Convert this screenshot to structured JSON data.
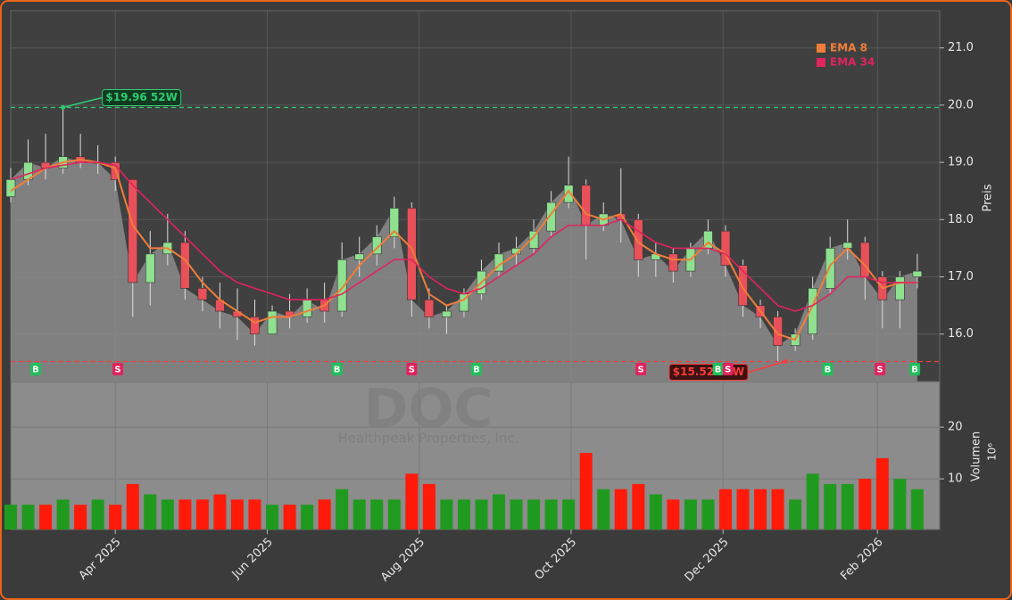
{
  "chart_data": {
    "type": "candlestick",
    "ticker": "DOC",
    "company": "Healthpeak Properties, Inc.",
    "ylabel": "Preis",
    "x": [
      "2025-02-18",
      "2025-02-25",
      "2025-03-04",
      "2025-03-11",
      "2025-03-18",
      "2025-03-25",
      "2025-04-01",
      "2025-04-08",
      "2025-04-15",
      "2025-04-22",
      "2025-04-29",
      "2025-05-06",
      "2025-05-13",
      "2025-05-20",
      "2025-05-27",
      "2025-06-03",
      "2025-06-10",
      "2025-06-17",
      "2025-06-24",
      "2025-07-01",
      "2025-07-08",
      "2025-07-15",
      "2025-07-22",
      "2025-07-29",
      "2025-08-05",
      "2025-08-12",
      "2025-08-19",
      "2025-08-26",
      "2025-09-02",
      "2025-09-09",
      "2025-09-16",
      "2025-09-23",
      "2025-09-30",
      "2025-10-07",
      "2025-10-14",
      "2025-10-21",
      "2025-10-28",
      "2025-11-04",
      "2025-11-11",
      "2025-11-18",
      "2025-11-25",
      "2025-12-02",
      "2025-12-09",
      "2025-12-16",
      "2025-12-23",
      "2025-12-30",
      "2026-01-06",
      "2026-01-13",
      "2026-01-20",
      "2026-01-27",
      "2026-02-03",
      "2026-02-10",
      "2026-02-17"
    ],
    "open": [
      18.4,
      18.7,
      19.0,
      18.9,
      19.1,
      19.0,
      19.0,
      18.7,
      16.9,
      17.4,
      17.6,
      16.8,
      16.6,
      16.4,
      16.3,
      16.0,
      16.4,
      16.3,
      16.6,
      16.4,
      17.3,
      17.4,
      17.7,
      18.2,
      16.6,
      16.3,
      16.4,
      16.7,
      17.1,
      17.4,
      17.5,
      17.8,
      18.3,
      18.6,
      17.9,
      18.1,
      18.0,
      17.3,
      17.4,
      17.1,
      17.5,
      17.8,
      17.2,
      16.5,
      16.3,
      15.8,
      16.0,
      16.8,
      17.5,
      17.6,
      17.0,
      16.6,
      17.0
    ],
    "high": [
      18.9,
      19.4,
      19.5,
      19.96,
      19.5,
      19.3,
      19.1,
      18.7,
      17.8,
      18.1,
      17.8,
      17.0,
      16.9,
      16.8,
      16.6,
      16.5,
      16.7,
      16.8,
      16.9,
      17.6,
      17.7,
      17.9,
      18.4,
      18.3,
      16.8,
      16.5,
      16.8,
      17.3,
      17.6,
      17.7,
      18.0,
      18.5,
      19.1,
      18.7,
      18.3,
      18.9,
      18.1,
      17.6,
      17.5,
      17.6,
      18.0,
      17.9,
      17.3,
      16.6,
      16.4,
      16.1,
      17.0,
      17.7,
      18.0,
      17.7,
      17.1,
      17.1,
      17.4
    ],
    "low": [
      18.3,
      18.6,
      18.7,
      18.8,
      18.9,
      18.8,
      18.5,
      16.3,
      16.5,
      17.2,
      16.6,
      16.4,
      16.1,
      15.9,
      15.8,
      16.0,
      16.1,
      16.2,
      16.2,
      16.3,
      17.0,
      17.2,
      17.5,
      16.3,
      16.1,
      16.0,
      16.3,
      16.6,
      17.0,
      17.2,
      17.4,
      17.7,
      18.2,
      17.3,
      17.8,
      17.6,
      17.0,
      17.0,
      16.9,
      17.0,
      17.4,
      17.0,
      16.3,
      16.1,
      15.52,
      15.7,
      15.9,
      16.7,
      17.3,
      16.6,
      16.1,
      16.1,
      16.8
    ],
    "close": [
      18.7,
      19.0,
      18.9,
      19.1,
      19.0,
      19.0,
      18.7,
      16.9,
      17.4,
      17.6,
      16.8,
      16.6,
      16.4,
      16.3,
      16.0,
      16.4,
      16.3,
      16.6,
      16.4,
      17.3,
      17.4,
      17.7,
      18.2,
      16.6,
      16.3,
      16.4,
      16.7,
      17.1,
      17.4,
      17.5,
      17.8,
      18.3,
      18.6,
      17.9,
      18.1,
      18.0,
      17.3,
      17.4,
      17.1,
      17.5,
      17.8,
      17.2,
      16.5,
      16.3,
      15.8,
      16.0,
      16.8,
      17.5,
      17.6,
      17.0,
      16.6,
      17.0,
      17.1
    ],
    "series": [
      {
        "name": "EMA 8",
        "color": "#f07d3a",
        "values": [
          18.5,
          18.7,
          18.9,
          19.0,
          19.05,
          19.0,
          18.9,
          17.9,
          17.5,
          17.5,
          17.3,
          16.9,
          16.6,
          16.4,
          16.2,
          16.3,
          16.3,
          16.4,
          16.5,
          16.8,
          17.2,
          17.5,
          17.8,
          17.5,
          16.7,
          16.5,
          16.6,
          16.9,
          17.2,
          17.4,
          17.7,
          18.1,
          18.5,
          18.1,
          18.0,
          18.1,
          17.6,
          17.4,
          17.3,
          17.3,
          17.6,
          17.4,
          16.8,
          16.4,
          16.0,
          15.9,
          16.5,
          17.2,
          17.5,
          17.2,
          16.8,
          16.9,
          16.9
        ]
      },
      {
        "name": "EMA 34",
        "color": "#e0245e",
        "values": [
          18.7,
          18.8,
          18.9,
          18.95,
          19.0,
          19.0,
          18.95,
          18.6,
          18.3,
          18.0,
          17.7,
          17.4,
          17.1,
          16.9,
          16.8,
          16.7,
          16.6,
          16.6,
          16.6,
          16.7,
          16.9,
          17.1,
          17.3,
          17.3,
          17.0,
          16.8,
          16.7,
          16.8,
          17.0,
          17.2,
          17.4,
          17.7,
          17.9,
          17.9,
          17.9,
          18.0,
          17.8,
          17.6,
          17.5,
          17.5,
          17.5,
          17.4,
          17.1,
          16.8,
          16.5,
          16.4,
          16.5,
          16.7,
          17.0,
          17.0,
          16.9,
          16.9,
          16.9
        ]
      }
    ],
    "up_color": "#8fe08f",
    "down_color": "#e8505a",
    "area_color": "#8c8c8c",
    "xlim": [
      "2025-02-18",
      "2026-02-26"
    ],
    "xticks": [
      {
        "value": "2025-04-01",
        "label": "Apr 2025"
      },
      {
        "value": "2025-06-01",
        "label": "Jun 2025"
      },
      {
        "value": "2025-08-01",
        "label": "Aug 2025"
      },
      {
        "value": "2025-10-01",
        "label": "Oct 2025"
      },
      {
        "value": "2025-12-01",
        "label": "Dec 2025"
      },
      {
        "value": "2026-02-01",
        "label": "Feb 2026"
      }
    ],
    "ylim": [
      15.17,
      21.65
    ],
    "yticks": [
      {
        "value": 16,
        "label": "16.0"
      },
      {
        "value": 17,
        "label": "17.0"
      },
      {
        "value": 18,
        "label": "18.0"
      },
      {
        "value": 19,
        "label": "19.0"
      },
      {
        "value": 20,
        "label": "20.0"
      },
      {
        "value": 21,
        "label": "21.0"
      }
    ],
    "grid": true,
    "legend": "upper right",
    "annotations": [
      {
        "label": "$19.96 52W",
        "value": 19.96,
        "date": "2025-03-11",
        "color": "#2ecc71"
      },
      {
        "label": "$15.52 52W",
        "value": 15.52,
        "date": "2025-12-26",
        "color": "#ff3b3b"
      }
    ],
    "signals": [
      {
        "date": "2025-02-28",
        "label": "B"
      },
      {
        "date": "2025-04-02",
        "label": "S"
      },
      {
        "date": "2025-06-29",
        "label": "B"
      },
      {
        "date": "2025-07-29",
        "label": "S"
      },
      {
        "date": "2025-08-24",
        "label": "B"
      },
      {
        "date": "2025-10-29",
        "label": "S"
      },
      {
        "date": "2025-11-29",
        "label": "B"
      },
      {
        "date": "2025-12-03",
        "label": "S"
      },
      {
        "date": "2026-01-12",
        "label": "B"
      },
      {
        "date": "2026-02-02",
        "label": "S"
      },
      {
        "date": "2026-02-16",
        "label": "B"
      }
    ],
    "signal_colors": {
      "B": "#1fbf5a",
      "S": "#e0245e"
    },
    "volume": {
      "label": "Volumen",
      "unit_label": "10⁶",
      "up_color": "#1f9a1f",
      "down_color": "#ff1a0a",
      "values": [
        5,
        5,
        5,
        6,
        5,
        6,
        5,
        9,
        7,
        6,
        6,
        6,
        7,
        6,
        6,
        5,
        5,
        5,
        6,
        8,
        6,
        6,
        6,
        11,
        9,
        6,
        6,
        6,
        7,
        6,
        6,
        6,
        6,
        15,
        8,
        8,
        9,
        7,
        6,
        6,
        6,
        8,
        8,
        8,
        8,
        6,
        11,
        9,
        9,
        10,
        14,
        10,
        8
      ],
      "ylim": [
        0.2,
        28.8
      ],
      "yticks": [
        10,
        20
      ]
    }
  }
}
